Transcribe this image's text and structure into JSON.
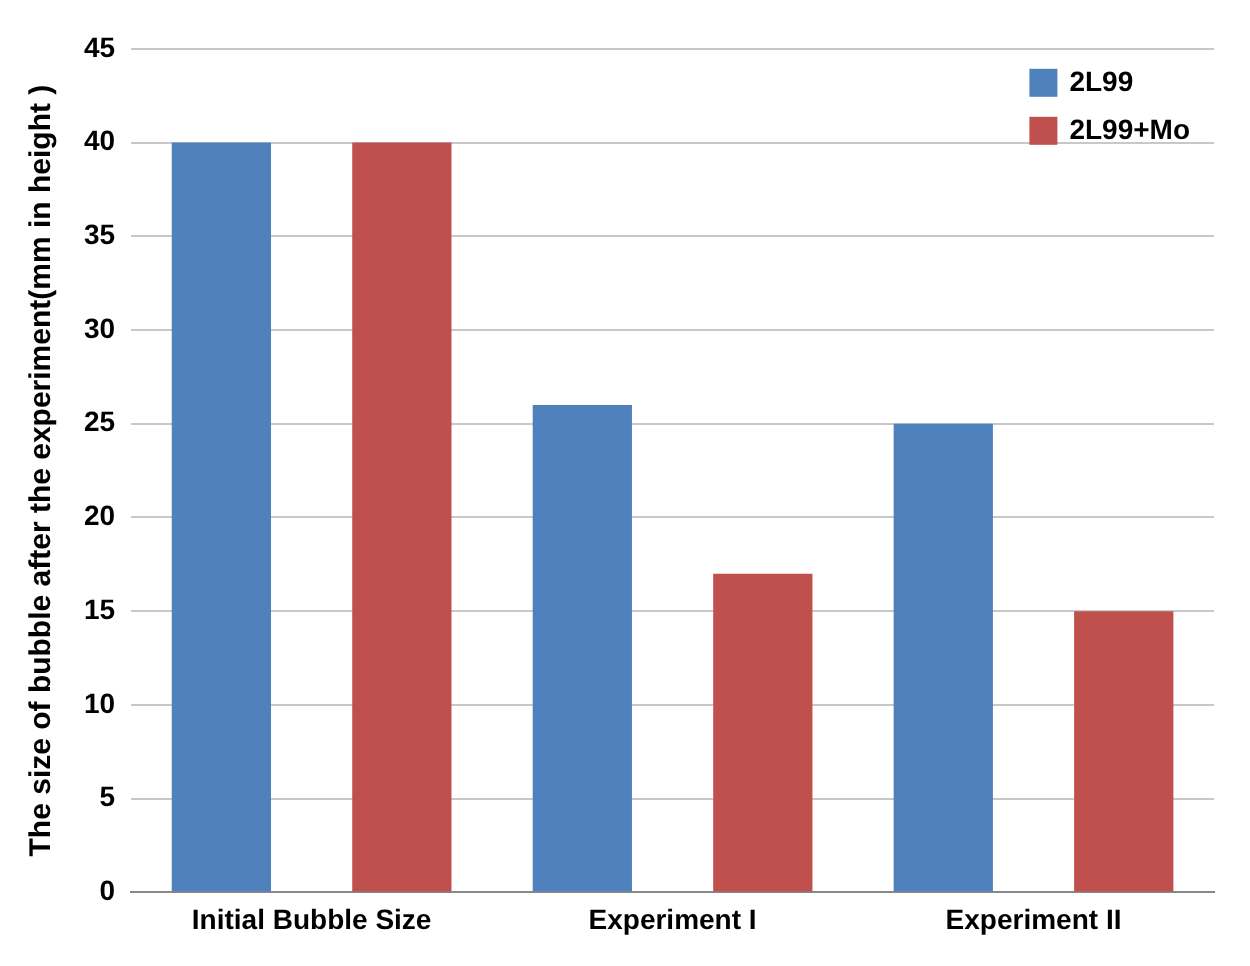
{
  "chart_data": {
    "type": "bar",
    "ylabel": "The size of bubble after the experiment(mm in height )",
    "categories": [
      "Initial Bubble Size",
      "Experiment I",
      "Experiment II"
    ],
    "series": [
      {
        "name": "2L99",
        "color": "#4f81bd",
        "values": [
          40,
          26,
          25
        ]
      },
      {
        "name": "2L99+Mo",
        "color": "#c0504d",
        "values": [
          40,
          17,
          15
        ]
      }
    ],
    "ylim": [
      0,
      45
    ],
    "yticks": [
      0,
      5,
      10,
      15,
      20,
      25,
      30,
      35,
      40,
      45
    ],
    "grid": "y",
    "legend": "top right"
  }
}
